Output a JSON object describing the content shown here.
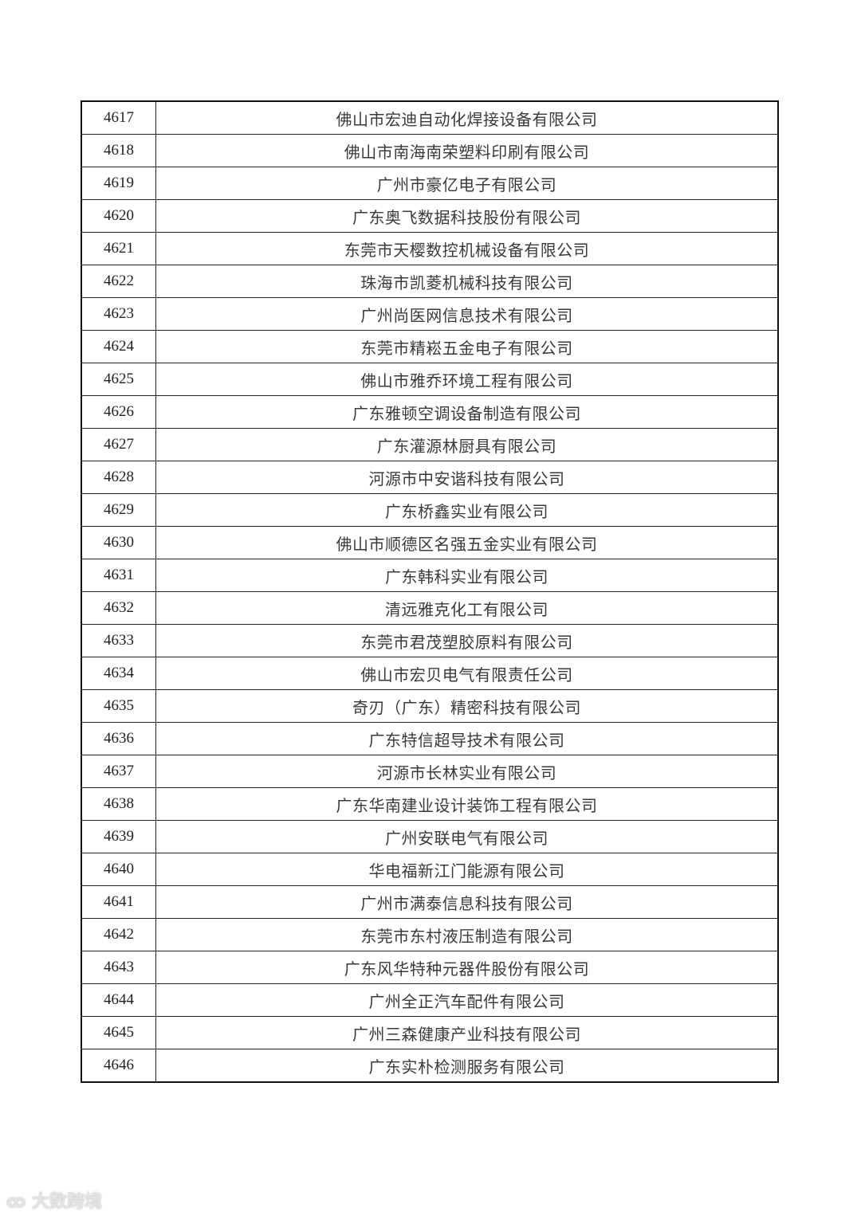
{
  "rows": [
    {
      "no": "4617",
      "name": "佛山市宏迪自动化焊接设备有限公司"
    },
    {
      "no": "4618",
      "name": "佛山市南海南荣塑料印刷有限公司"
    },
    {
      "no": "4619",
      "name": "广州市豪亿电子有限公司"
    },
    {
      "no": "4620",
      "name": "广东奥飞数据科技股份有限公司"
    },
    {
      "no": "4621",
      "name": "东莞市天樱数控机械设备有限公司"
    },
    {
      "no": "4622",
      "name": "珠海市凯菱机械科技有限公司"
    },
    {
      "no": "4623",
      "name": "广州尚医网信息技术有限公司"
    },
    {
      "no": "4624",
      "name": "东莞市精崧五金电子有限公司"
    },
    {
      "no": "4625",
      "name": "佛山市雅乔环境工程有限公司"
    },
    {
      "no": "4626",
      "name": "广东雅顿空调设备制造有限公司"
    },
    {
      "no": "4627",
      "name": "广东灌源林厨具有限公司"
    },
    {
      "no": "4628",
      "name": "河源市中安谐科技有限公司"
    },
    {
      "no": "4629",
      "name": "广东桥鑫实业有限公司"
    },
    {
      "no": "4630",
      "name": "佛山市顺德区名强五金实业有限公司"
    },
    {
      "no": "4631",
      "name": "广东韩科实业有限公司"
    },
    {
      "no": "4632",
      "name": "清远雅克化工有限公司"
    },
    {
      "no": "4633",
      "name": "东莞市君茂塑胶原料有限公司"
    },
    {
      "no": "4634",
      "name": "佛山市宏贝电气有限责任公司"
    },
    {
      "no": "4635",
      "name": "奇刃（广东）精密科技有限公司"
    },
    {
      "no": "4636",
      "name": "广东特信超导技术有限公司"
    },
    {
      "no": "4637",
      "name": "河源市长林实业有限公司"
    },
    {
      "no": "4638",
      "name": "广东华南建业设计装饰工程有限公司"
    },
    {
      "no": "4639",
      "name": "广州安联电气有限公司"
    },
    {
      "no": "4640",
      "name": "华电福新江门能源有限公司"
    },
    {
      "no": "4641",
      "name": "广州市满泰信息科技有限公司"
    },
    {
      "no": "4642",
      "name": "东莞市东村液压制造有限公司"
    },
    {
      "no": "4643",
      "name": "广东风华特种元器件股份有限公司"
    },
    {
      "no": "4644",
      "name": "广州全正汽车配件有限公司"
    },
    {
      "no": "4645",
      "name": "广州三森健康产业科技有限公司"
    },
    {
      "no": "4646",
      "name": "广东实朴检测服务有限公司"
    }
  ],
  "watermark": "大数跨境"
}
